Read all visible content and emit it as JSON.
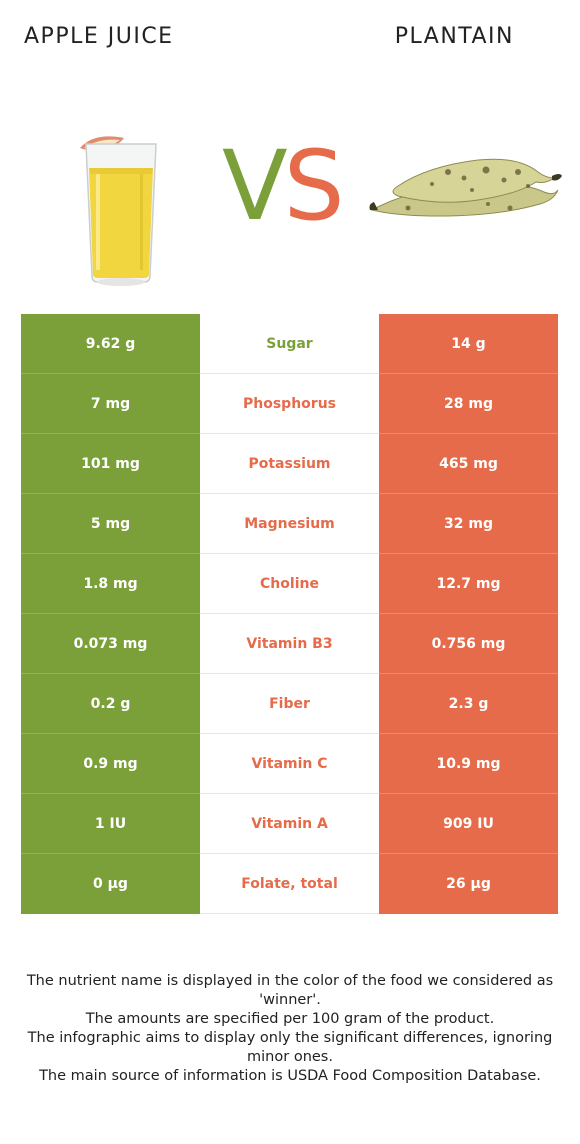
{
  "left_food": {
    "name": "APPLE JUICE",
    "color": "#7ba03a"
  },
  "right_food": {
    "name": "PLANTAIN",
    "color": "#e56b4a"
  },
  "vs": {
    "v": "V",
    "s": "S"
  },
  "rows": [
    {
      "left": "9.62 g",
      "nutrient": "Sugar",
      "right": "14 g",
      "winner": "left"
    },
    {
      "left": "7 mg",
      "nutrient": "Phosphorus",
      "right": "28 mg",
      "winner": "right"
    },
    {
      "left": "101 mg",
      "nutrient": "Potassium",
      "right": "465 mg",
      "winner": "right"
    },
    {
      "left": "5 mg",
      "nutrient": "Magnesium",
      "right": "32 mg",
      "winner": "right"
    },
    {
      "left": "1.8 mg",
      "nutrient": "Choline",
      "right": "12.7 mg",
      "winner": "right"
    },
    {
      "left": "0.073 mg",
      "nutrient": "Vitamin B3",
      "right": "0.756 mg",
      "winner": "right"
    },
    {
      "left": "0.2 g",
      "nutrient": "Fiber",
      "right": "2.3 g",
      "winner": "right"
    },
    {
      "left": "0.9 mg",
      "nutrient": "Vitamin C",
      "right": "10.9 mg",
      "winner": "right"
    },
    {
      "left": "1 IU",
      "nutrient": "Vitamin A",
      "right": "909 IU",
      "winner": "right"
    },
    {
      "left": "0 µg",
      "nutrient": "Folate, total",
      "right": "26 µg",
      "winner": "right"
    }
  ],
  "footer": {
    "line1": "The nutrient name is displayed in the color of the food we considered as 'winner'.",
    "line2": "The amounts are specified per 100 gram of the product.",
    "line3": "The infographic aims to display only the significant differences, ignoring minor ones.",
    "line4": "The main source of information is USDA Food Composition Database."
  }
}
